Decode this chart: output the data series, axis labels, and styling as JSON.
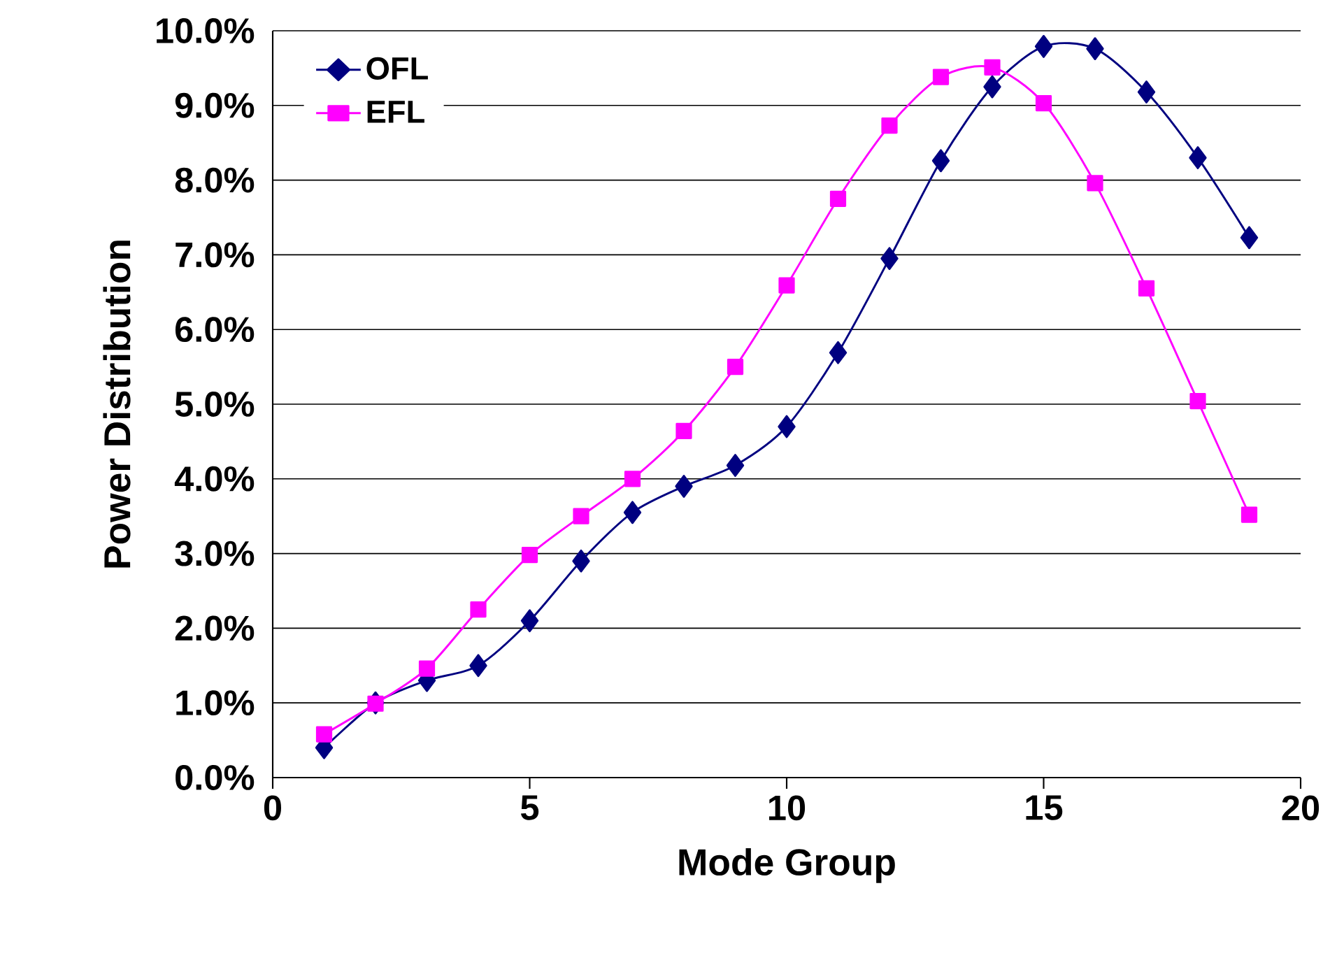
{
  "chart_data": {
    "type": "line",
    "xlabel": "Mode Group",
    "ylabel": "Power Distribution",
    "x": [
      1,
      2,
      3,
      4,
      5,
      6,
      7,
      8,
      9,
      10,
      11,
      12,
      13,
      14,
      15,
      16,
      17,
      18,
      19
    ],
    "series": [
      {
        "name": "OFL",
        "color": "#000080",
        "marker": "diamond",
        "values": [
          0.4,
          1.0,
          1.3,
          1.5,
          2.1,
          2.9,
          3.55,
          3.9,
          4.18,
          4.7,
          5.69,
          6.95,
          8.26,
          9.25,
          9.79,
          9.76,
          9.18,
          8.3,
          7.23
        ]
      },
      {
        "name": "EFL",
        "color": "#ff00ff",
        "marker": "square",
        "values": [
          0.58,
          0.99,
          1.46,
          2.25,
          2.98,
          3.5,
          4.0,
          4.64,
          5.5,
          6.59,
          7.75,
          8.73,
          9.38,
          9.51,
          9.03,
          7.96,
          6.55,
          5.04,
          3.52
        ]
      }
    ],
    "xlim": [
      0,
      20
    ],
    "xticks": [
      0,
      5,
      10,
      15,
      20
    ],
    "ylim": [
      0,
      10
    ],
    "yticks": [
      {
        "value": 0,
        "label": "0.0%"
      },
      {
        "value": 1,
        "label": "1.0%"
      },
      {
        "value": 2,
        "label": "2.0%"
      },
      {
        "value": 3,
        "label": "3.0%"
      },
      {
        "value": 4,
        "label": "4.0%"
      },
      {
        "value": 5,
        "label": "5.0%"
      },
      {
        "value": 6,
        "label": "6.0%"
      },
      {
        "value": 7,
        "label": "7.0%"
      },
      {
        "value": 8,
        "label": "8.0%"
      },
      {
        "value": 9,
        "label": "9.0%"
      },
      {
        "value": 10,
        "label": "10.0%"
      }
    ],
    "grid": "y",
    "legend": "top left"
  }
}
